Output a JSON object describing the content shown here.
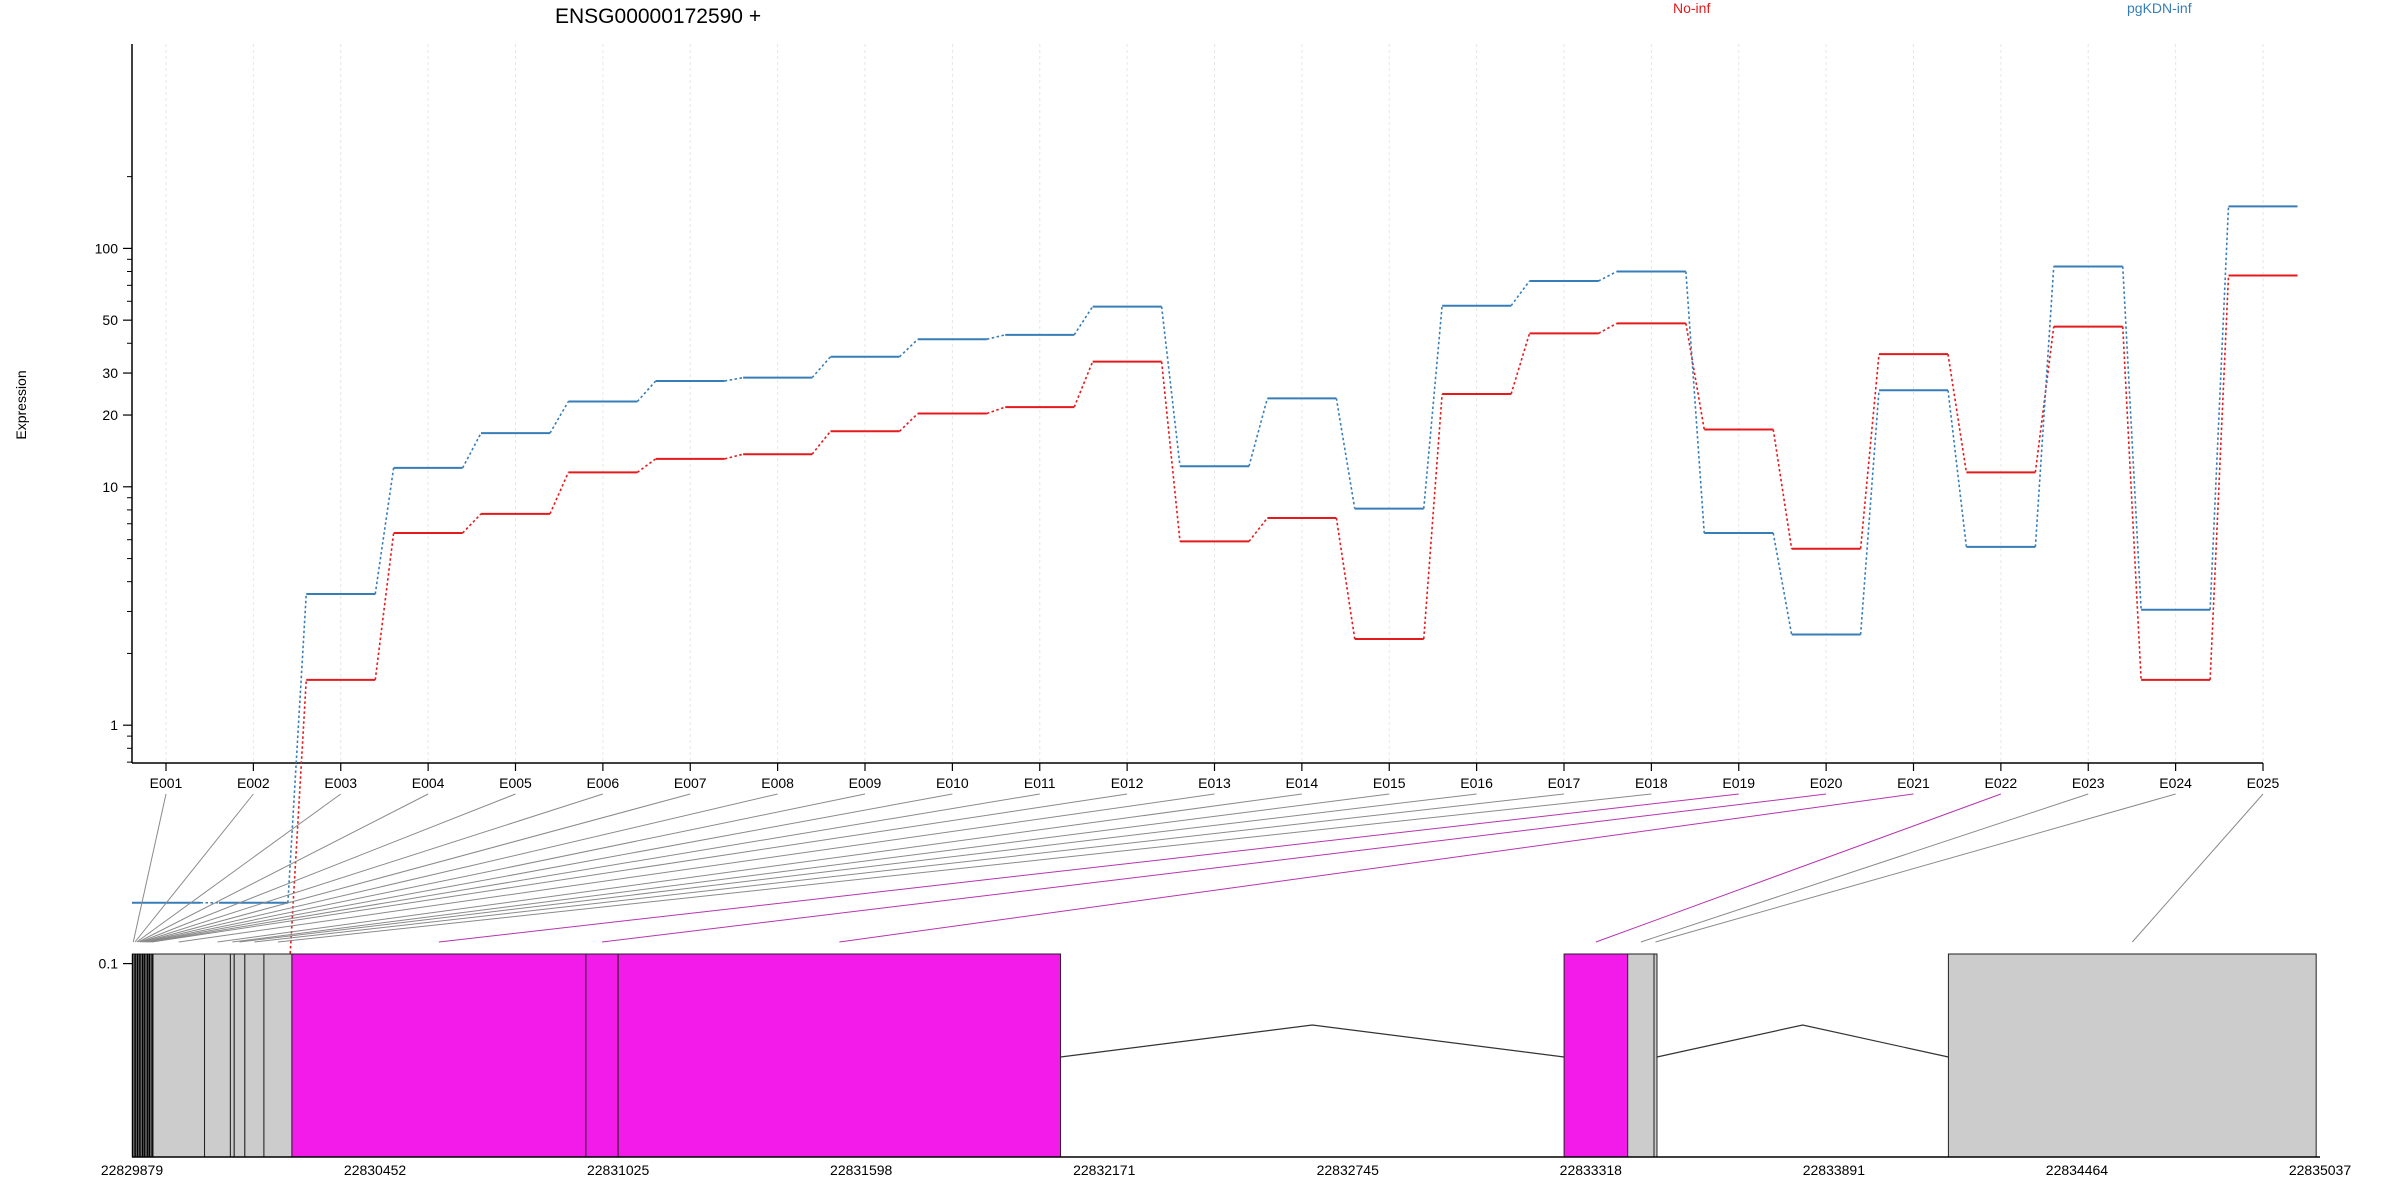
{
  "chart_data": {
    "type": "line",
    "title": "ENSG00000172590 +",
    "ylabel": "Expression",
    "xlabel": "",
    "yscale": "log",
    "ylim": [
      0.07,
      220
    ],
    "yticks": [
      0.1,
      1,
      10,
      20,
      30,
      50,
      100
    ],
    "grid": "vertical",
    "legend_position": "top",
    "categories": [
      "E001",
      "E002",
      "E003",
      "E004",
      "E005",
      "E006",
      "E007",
      "E008",
      "E009",
      "E010",
      "E011",
      "E012",
      "E013",
      "E014",
      "E015",
      "E016",
      "E017",
      "E018",
      "E019",
      "E020",
      "E021",
      "E022",
      "E023",
      "E024",
      "E025"
    ],
    "series": [
      {
        "name": "No-inf",
        "color": "#e41a1c",
        "values": [
          0.075,
          0.075,
          1.55,
          6.4,
          7.7,
          11.5,
          13.1,
          13.7,
          17.1,
          20.3,
          21.6,
          33.5,
          5.9,
          7.4,
          2.3,
          24.5,
          44.0,
          48.5,
          17.4,
          5.5,
          36.0,
          11.5,
          47.0,
          1.55,
          77.0
        ]
      },
      {
        "name": "pgKDN-inf",
        "color": "#377eb8",
        "values": [
          0.18,
          0.18,
          3.55,
          12.0,
          16.8,
          22.8,
          27.8,
          28.7,
          35.1,
          41.6,
          43.4,
          57.0,
          12.2,
          23.5,
          8.1,
          57.5,
          73.0,
          80.0,
          6.4,
          2.4,
          25.4,
          5.6,
          84.0,
          3.05,
          150.0
        ]
      }
    ],
    "annotations": {
      "exon_colors": {
        "default": "#cccccc",
        "highlighted": "#f21bea"
      },
      "highlighted_exons": [
        "E019",
        "E020",
        "E021",
        "E022"
      ],
      "genomic_axis_ticks": [
        "22829879",
        "22830452",
        "22831025",
        "22831598",
        "22832171",
        "22832745",
        "22833318",
        "22833891",
        "22834464",
        "22835037"
      ],
      "gene_model": {
        "start": 22829879,
        "end": 22835037,
        "exons": [
          {
            "id": "E001",
            "start": 22829880,
            "end": 22829884
          },
          {
            "id": "E002",
            "start": 22829884,
            "end": 22829888
          },
          {
            "id": "E003",
            "start": 22829888,
            "end": 22829892
          },
          {
            "id": "E004",
            "start": 22829892,
            "end": 22829896
          },
          {
            "id": "E005",
            "start": 22829896,
            "end": 22829900
          },
          {
            "id": "E006",
            "start": 22829900,
            "end": 22829904
          },
          {
            "id": "E007",
            "start": 22829904,
            "end": 22829908
          },
          {
            "id": "E008",
            "start": 22829908,
            "end": 22829912
          },
          {
            "id": "E009",
            "start": 22829912,
            "end": 22829916
          },
          {
            "id": "E010",
            "start": 22829916,
            "end": 22829920
          },
          {
            "id": "E011",
            "start": 22829920,
            "end": 22829924
          },
          {
            "id": "E012",
            "start": 22829924,
            "end": 22829928
          },
          {
            "id": "E013",
            "start": 22829928,
            "end": 22830050
          },
          {
            "id": "E014",
            "start": 22830050,
            "end": 22830111
          },
          {
            "id": "E015",
            "start": 22830111,
            "end": 22830120
          },
          {
            "id": "E016",
            "start": 22830120,
            "end": 22830145
          },
          {
            "id": "E017",
            "start": 22830145,
            "end": 22830190
          },
          {
            "id": "E018",
            "start": 22830190,
            "end": 22830256
          },
          {
            "id": "E019",
            "start": 22830256,
            "end": 22830949
          },
          {
            "id": "E020",
            "start": 22830949,
            "end": 22831025
          },
          {
            "id": "E021",
            "start": 22831025,
            "end": 22832068
          },
          {
            "id": "E022",
            "start": 22833255,
            "end": 22833405
          },
          {
            "id": "E023",
            "start": 22833405,
            "end": 22833467
          },
          {
            "id": "E024",
            "start": 22833467,
            "end": 22833474
          },
          {
            "id": "E025",
            "start": 22834161,
            "end": 22835028
          }
        ],
        "introns": [
          {
            "start": 22830111,
            "end": 22830145
          },
          {
            "start": 22832068,
            "end": 22833255
          },
          {
            "start": 22833474,
            "end": 22834161
          }
        ]
      }
    }
  }
}
